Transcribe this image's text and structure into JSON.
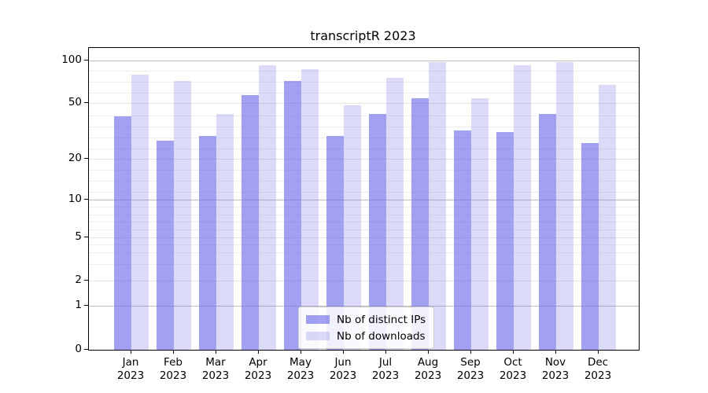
{
  "chart": {
    "title": "transcriptR 2023"
  },
  "chart_data": {
    "type": "bar",
    "title": "transcriptR 2023",
    "categories": [
      "Jan",
      "Feb",
      "Mar",
      "Apr",
      "May",
      "Jun",
      "Jul",
      "Aug",
      "Sep",
      "Oct",
      "Nov",
      "Dec"
    ],
    "x_tick_second_line": "2023",
    "series": [
      {
        "name": "Nb of distinct IPs",
        "color": "rgba(110,110,230,0.65)",
        "values": [
          40,
          27,
          29,
          57,
          72,
          29,
          42,
          54,
          32,
          31,
          42,
          26
        ]
      },
      {
        "name": "Nb of downloads",
        "color": "rgba(110,110,230,0.25)",
        "values": [
          79,
          72,
          42,
          92,
          87,
          48,
          75,
          98,
          54,
          92,
          98,
          67
        ]
      }
    ],
    "y_ticks": [
      0,
      1,
      2,
      5,
      10,
      20,
      50,
      100
    ],
    "y_major_gridline_values": [
      1,
      10,
      100
    ],
    "y_light_gridline_values": [
      2,
      5,
      20,
      50
    ],
    "yscale": "symlog",
    "ylim": [
      0,
      120
    ],
    "grid": "both",
    "legend_position": "lower center",
    "background_color": "#ffffff",
    "spine_color": "#000000"
  }
}
